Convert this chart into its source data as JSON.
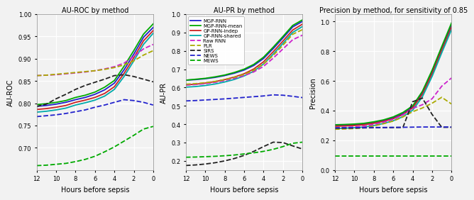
{
  "title1": "AU-ROC by method",
  "title2": "AU-PR by method",
  "title3": "Precision by method, for sensitivity of 0.85",
  "xlabel": "Hours before sepsis",
  "ylabel1": "AU-ROC",
  "ylabel2": "AU-PR",
  "ylabel3": "Precision",
  "x_hours": [
    12,
    11,
    10,
    9,
    8,
    7,
    6,
    5,
    4,
    3,
    2,
    1,
    0
  ],
  "legend_labels": [
    "MGP-RNN",
    "MGP-RNN-mean",
    "GP-RNN-indep",
    "GP-RNN-shared",
    "Raw RNN",
    "PLR",
    "SIRS",
    "NEWS",
    "MEWS"
  ],
  "method_colors": {
    "MGP-RNN": "#2020cc",
    "MGP-RNN-mean": "#00aa00",
    "GP-RNN-indep": "#cc2222",
    "GP-RNN-shared": "#00aaaa",
    "Raw RNN": "#cc22cc",
    "PLR": "#aaaa00",
    "SIRS": "#222222",
    "NEWS": "#2222cc",
    "MEWS": "#00aa00"
  },
  "method_styles": {
    "MGP-RNN": "-",
    "MGP-RNN-mean": "-",
    "GP-RNN-indep": "-",
    "GP-RNN-shared": "-",
    "Raw RNN": "--",
    "PLR": "--",
    "SIRS": "--",
    "NEWS": "--",
    "MEWS": "--"
  },
  "auroc": {
    "MGP-RNN": [
      0.793,
      0.795,
      0.798,
      0.802,
      0.808,
      0.813,
      0.82,
      0.83,
      0.845,
      0.875,
      0.91,
      0.948,
      0.97
    ],
    "MGP-RNN-mean": [
      0.797,
      0.799,
      0.802,
      0.806,
      0.813,
      0.818,
      0.825,
      0.836,
      0.851,
      0.883,
      0.918,
      0.955,
      0.978
    ],
    "GP-RNN-indep": [
      0.786,
      0.788,
      0.791,
      0.795,
      0.802,
      0.807,
      0.813,
      0.822,
      0.837,
      0.867,
      0.902,
      0.94,
      0.963
    ],
    "GP-RNN-shared": [
      0.78,
      0.782,
      0.785,
      0.789,
      0.796,
      0.801,
      0.807,
      0.816,
      0.831,
      0.86,
      0.895,
      0.932,
      0.957
    ],
    "Raw RNN": [
      0.862,
      0.863,
      0.864,
      0.866,
      0.868,
      0.87,
      0.873,
      0.877,
      0.882,
      0.89,
      0.905,
      0.922,
      0.932
    ],
    "PLR": [
      0.862,
      0.863,
      0.865,
      0.867,
      0.869,
      0.871,
      0.873,
      0.876,
      0.88,
      0.886,
      0.895,
      0.908,
      0.918
    ],
    "SIRS": [
      0.793,
      0.798,
      0.81,
      0.82,
      0.831,
      0.84,
      0.847,
      0.854,
      0.862,
      0.864,
      0.86,
      0.854,
      0.848
    ],
    "NEWS": [
      0.77,
      0.772,
      0.774,
      0.777,
      0.781,
      0.785,
      0.791,
      0.796,
      0.802,
      0.808,
      0.806,
      0.802,
      0.796
    ],
    "MEWS": [
      0.66,
      0.661,
      0.663,
      0.665,
      0.669,
      0.674,
      0.681,
      0.691,
      0.702,
      0.715,
      0.728,
      0.742,
      0.748
    ]
  },
  "aupr": {
    "MGP-RNN": [
      0.64,
      0.643,
      0.648,
      0.655,
      0.665,
      0.678,
      0.695,
      0.72,
      0.758,
      0.812,
      0.87,
      0.93,
      0.96
    ],
    "MGP-RNN-mean": [
      0.64,
      0.645,
      0.65,
      0.658,
      0.668,
      0.682,
      0.7,
      0.726,
      0.765,
      0.82,
      0.878,
      0.938,
      0.968
    ],
    "GP-RNN-indep": [
      0.615,
      0.618,
      0.624,
      0.632,
      0.643,
      0.657,
      0.675,
      0.701,
      0.74,
      0.795,
      0.853,
      0.913,
      0.945
    ],
    "GP-RNN-shared": [
      0.602,
      0.605,
      0.611,
      0.619,
      0.63,
      0.644,
      0.663,
      0.689,
      0.728,
      0.782,
      0.84,
      0.9,
      0.932
    ],
    "Raw RNN": [
      0.613,
      0.616,
      0.621,
      0.628,
      0.638,
      0.65,
      0.665,
      0.685,
      0.715,
      0.76,
      0.81,
      0.86,
      0.885
    ],
    "PLR": [
      0.618,
      0.621,
      0.626,
      0.633,
      0.643,
      0.656,
      0.672,
      0.694,
      0.728,
      0.775,
      0.83,
      0.89,
      0.915
    ],
    "SIRS": [
      0.175,
      0.178,
      0.183,
      0.19,
      0.2,
      0.213,
      0.23,
      0.252,
      0.278,
      0.302,
      0.3,
      0.282,
      0.265
    ],
    "NEWS": [
      0.527,
      0.529,
      0.532,
      0.535,
      0.538,
      0.542,
      0.546,
      0.55,
      0.554,
      0.56,
      0.558,
      0.552,
      0.545
    ],
    "MEWS": [
      0.22,
      0.221,
      0.223,
      0.225,
      0.228,
      0.232,
      0.238,
      0.244,
      0.252,
      0.263,
      0.278,
      0.296,
      0.302
    ]
  },
  "prec": {
    "MGP-RNN": [
      0.3,
      0.302,
      0.305,
      0.31,
      0.32,
      0.333,
      0.352,
      0.38,
      0.425,
      0.52,
      0.66,
      0.82,
      0.975
    ],
    "MGP-RNN-mean": [
      0.305,
      0.307,
      0.31,
      0.315,
      0.325,
      0.338,
      0.358,
      0.388,
      0.432,
      0.53,
      0.672,
      0.832,
      0.99
    ],
    "GP-RNN-indep": [
      0.295,
      0.297,
      0.3,
      0.305,
      0.315,
      0.328,
      0.346,
      0.374,
      0.418,
      0.51,
      0.648,
      0.808,
      0.962
    ],
    "GP-RNN-shared": [
      0.28,
      0.282,
      0.285,
      0.29,
      0.3,
      0.314,
      0.332,
      0.36,
      0.403,
      0.493,
      0.63,
      0.79,
      0.945
    ],
    "Raw RNN": [
      0.285,
      0.287,
      0.29,
      0.295,
      0.308,
      0.323,
      0.342,
      0.372,
      0.415,
      0.44,
      0.48,
      0.565,
      0.62
    ],
    "PLR": [
      0.275,
      0.277,
      0.28,
      0.285,
      0.297,
      0.312,
      0.33,
      0.358,
      0.393,
      0.418,
      0.45,
      0.49,
      0.445
    ],
    "SIRS": [
      0.282,
      0.282,
      0.283,
      0.284,
      0.285,
      0.286,
      0.286,
      0.287,
      0.46,
      0.485,
      0.375,
      0.288,
      0.288
    ],
    "NEWS": [
      0.285,
      0.285,
      0.286,
      0.286,
      0.287,
      0.287,
      0.288,
      0.288,
      0.289,
      0.29,
      0.29,
      0.29,
      0.29
    ],
    "MEWS": [
      0.095,
      0.095,
      0.095,
      0.095,
      0.095,
      0.095,
      0.095,
      0.095,
      0.095,
      0.095,
      0.095,
      0.095,
      0.095
    ]
  },
  "auroc_ylim": [
    0.65,
    1.0
  ],
  "auroc_yticks": [
    0.7,
    0.75,
    0.8,
    0.85,
    0.9,
    0.95,
    1.0
  ],
  "aupr_ylim": [
    0.15,
    1.0
  ],
  "aupr_yticks": [
    0.2,
    0.3,
    0.4,
    0.5,
    0.6,
    0.7,
    0.8,
    0.9,
    1.0
  ],
  "prec_ylim": [
    0.0,
    1.05
  ],
  "prec_yticks": [
    0.0,
    0.2,
    0.4,
    0.6,
    0.8,
    1.0
  ],
  "background_color": "#f2f2f2",
  "grid_color": "#ffffff"
}
